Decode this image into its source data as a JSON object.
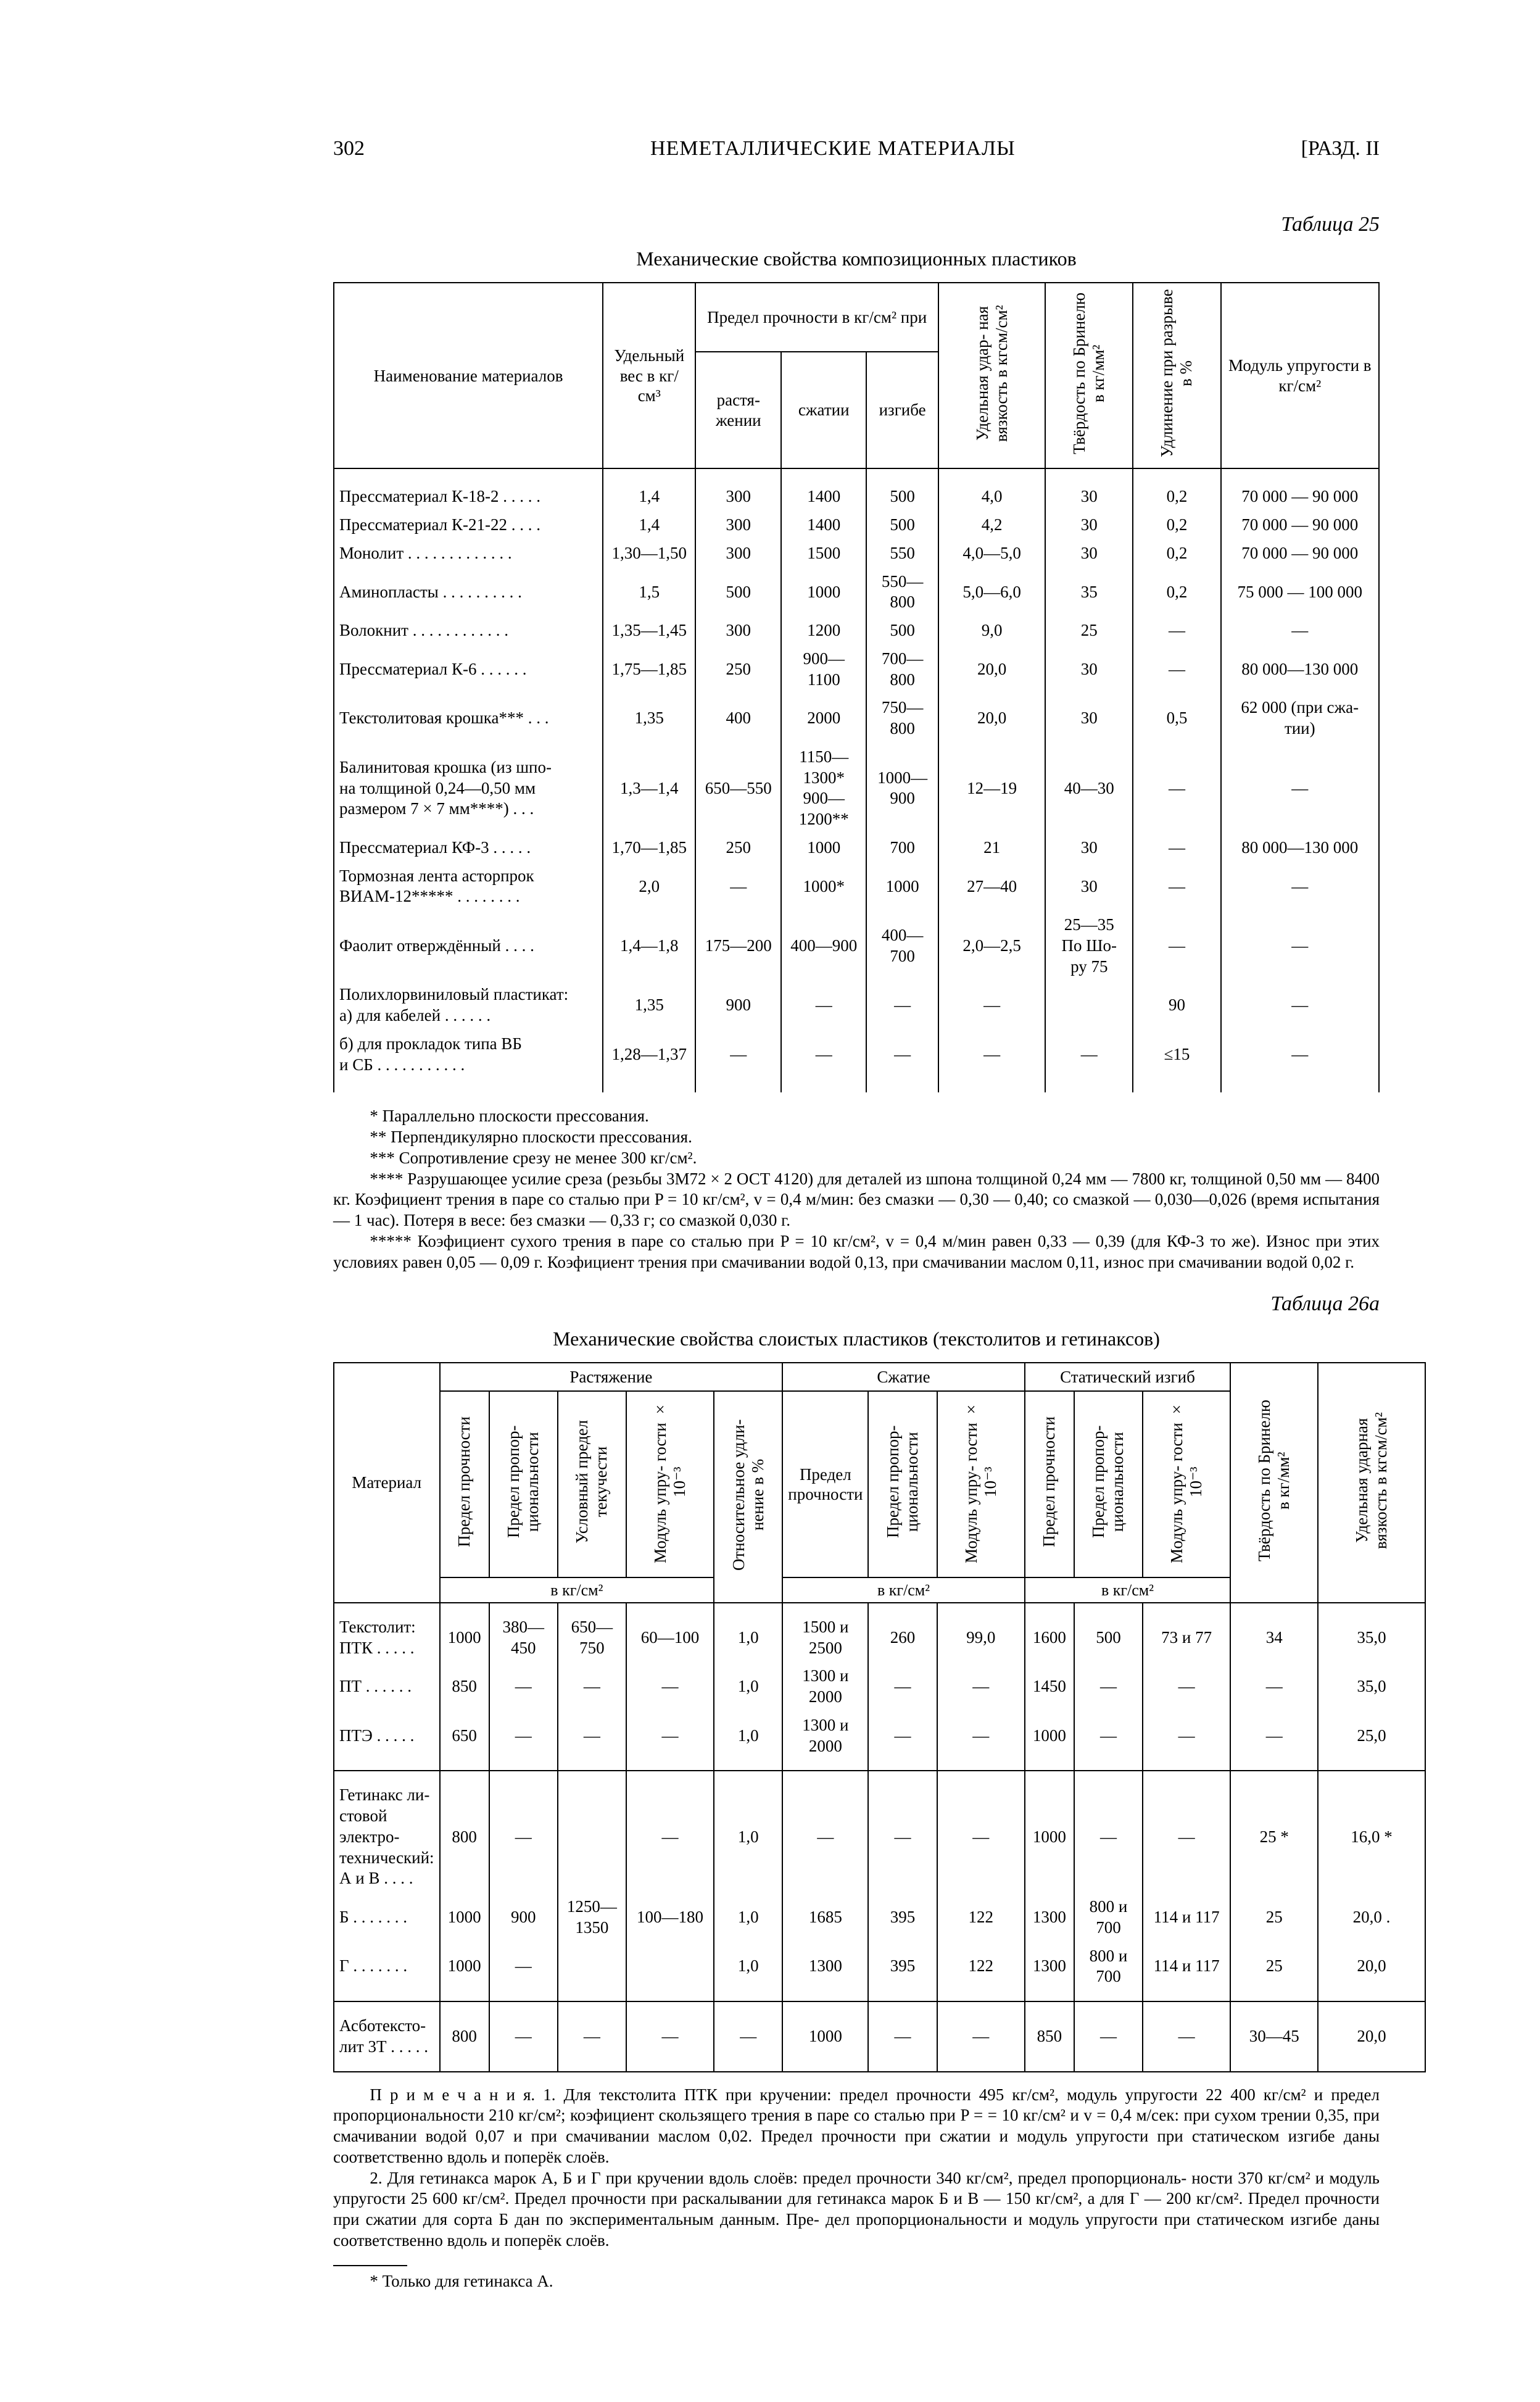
{
  "header": {
    "page_num": "302",
    "center": "НЕМЕТАЛЛИЧЕСКИЕ МАТЕРИАЛЫ",
    "right": "[РАЗД. II"
  },
  "colors": {
    "background": "#ffffff",
    "text": "#000000",
    "rule": "#000000"
  },
  "typography": {
    "base_fontsize_pt": 9,
    "title_fontsize_pt": 10,
    "head_fontsize_pt": 11
  },
  "table25": {
    "caption": "Таблица 25",
    "title": "Механические свойства композиционных пластиков",
    "head": {
      "name": "Наименование материалов",
      "density": "Удельный вес в кг/см³",
      "strength_group": "Предел прочности в кг/см² при",
      "tension": "растя-\nжении",
      "compression": "сжатии",
      "bending": "изгибе",
      "impact": "Удельная удар-\nная вязкость\nв кгсм/см²",
      "brinell": "Твёрдость по\nБринелю в\nкг/мм²",
      "elong": "Удлинение при\nразрыве в %",
      "modulus": "Модуль упругости в кг/см²"
    },
    "rows": [
      {
        "name": "Прессматериал К-18-2 . . . . .",
        "d": "1,4",
        "t": "300",
        "c": "1400",
        "b": "500",
        "i": "4,0",
        "br": "30",
        "el": "0,2",
        "m": "70 000 — 90 000"
      },
      {
        "name": "Прессматериал К-21-22 . . . .",
        "d": "1,4",
        "t": "300",
        "c": "1400",
        "b": "500",
        "i": "4,2",
        "br": "30",
        "el": "0,2",
        "m": "70 000 — 90 000"
      },
      {
        "name": "Монолит . . . . . . . . . . . . .",
        "d": "1,30—1,50",
        "t": "300",
        "c": "1500",
        "b": "550",
        "i": "4,0—5,0",
        "br": "30",
        "el": "0,2",
        "m": "70 000 — 90 000"
      },
      {
        "name": "Аминопласты . . . . . . . . . .",
        "d": "1,5",
        "t": "500",
        "c": "1000",
        "b": "550—800",
        "i": "5,0—6,0",
        "br": "35",
        "el": "0,2",
        "m": "75 000 — 100 000"
      },
      {
        "name": "Волокнит . . . . . . . . . . . .",
        "d": "1,35—1,45",
        "t": "300",
        "c": "1200",
        "b": "500",
        "i": "9,0",
        "br": "25",
        "el": "—",
        "m": "—"
      },
      {
        "name": "Прессматериал К-6 . . . . . .",
        "d": "1,75—1,85",
        "t": "250",
        "c": "900—1100",
        "b": "700—800",
        "i": "20,0",
        "br": "30",
        "el": "—",
        "m": "80 000—130 000"
      },
      {
        "name": "Текстолитовая крошка*** . . .",
        "d": "1,35",
        "t": "400",
        "c": "2000",
        "b": "750—800",
        "i": "20,0",
        "br": "30",
        "el": "0,5",
        "m": "62 000 (при сжа-\nтии)"
      },
      {
        "name": "Балинитовая крошка (из шпо-\nна толщиной 0,24—0,50 мм\nразмером 7 × 7 мм****) . . .",
        "d": "1,3—1,4",
        "t": "650—550",
        "c": "1150—1300*\n900—1200**",
        "b": "1000—900",
        "i": "12—19",
        "br": "40—30",
        "el": "—",
        "m": "—"
      },
      {
        "name": "Прессматериал КФ-3 . . . . .",
        "d": "1,70—1,85",
        "t": "250",
        "c": "1000",
        "b": "700",
        "i": "21",
        "br": "30",
        "el": "—",
        "m": "80 000—130 000"
      },
      {
        "name": "Тормозная лента асторпрок\nВИАМ-12***** . . . . . . . .",
        "d": "2,0",
        "t": "—",
        "c": "1000*",
        "b": "1000",
        "i": "27—40",
        "br": "30",
        "el": "—",
        "m": "—"
      },
      {
        "name": "Фаолит отверждённый . . . .",
        "d": "1,4—1,8",
        "t": "175—200",
        "c": "400—900",
        "b": "400—700",
        "i": "2,0—2,5",
        "br": "25—35\nПо Шо-\nру 75",
        "el": "—",
        "m": "—"
      },
      {
        "name": "Полихлорвиниловый пластикат:\nа) для кабелей . . . . . .",
        "d": "1,35",
        "t": "900",
        "c": "—",
        "b": "—",
        "i": "—",
        "br": "",
        "el": "90",
        "m": "—"
      },
      {
        "name": "б) для прокладок типа ВБ\nи СБ . . . . . . . . . . .",
        "d": "1,28—1,37",
        "t": "—",
        "c": "—",
        "b": "—",
        "i": "—",
        "br": "—",
        "el": "≤15",
        "m": "—"
      }
    ]
  },
  "footnotes25": {
    "f1": "* Параллельно плоскости прессования.",
    "f2": "** Перпендикулярно плоскости прессования.",
    "f3": "*** Сопротивление срезу не менее 300 кг/см².",
    "f4": "**** Разрушающее усилие среза (резьбы 3М72 × 2 ОСТ 4120) для деталей из шпона толщиной 0,24 мм — 7800 кг, толщиной 0,50 мм — 8400 кг. Коэфициент трения в паре со сталью при P = 10 кг/см², v = 0,4 м/мин: без смазки — 0,30 — 0,40; со смазкой — 0,030—0,026 (время испытания — 1 час). Потеря в весе: без смазки — 0,33 г; со смазкой 0,030 г.",
    "f5": "***** Коэфициент сухого трения в паре со сталью при P = 10 кг/см², v = 0,4 м/мин равен 0,33 — 0,39 (для КФ-3 то же). Износ при этих условиях равен 0,05 — 0,09 г. Коэфициент трения при смачивании водой 0,13, при смачивании маслом 0,11, износ при смачивании водой 0,02 г."
  },
  "table26a": {
    "caption": "Таблица 26а",
    "title": "Механические свойства слоистых пластиков (текстолитов и гетинаксов)",
    "head": {
      "material": "Материал",
      "tension_group": "Растяжение",
      "compression_group": "Сжатие",
      "bending_group": "Статический изгиб",
      "strength": "Предел прочности",
      "prop": "Предел пропор-\nциональности",
      "yield": "Условный предел\nтекучести",
      "modulus": "Модуль упру-\nгости × 10⁻³",
      "elong": "Относительное удли-\nнение в %",
      "c_strength": "Предел прочности",
      "c_prop": "Предел пропор-\nциональности",
      "c_mod": "Модуль упру-\nгости × 10⁻³",
      "b_strength": "Предел прочности",
      "b_prop": "Предел пропор-\nциональности",
      "b_mod": "Модуль упру-\nгости × 10⁻³",
      "brinell": "Твёрдость по Бринелю\nв кг/мм²",
      "impact": "Удельная ударная\nвязкость в кгсм/см²",
      "unit1": "в кг/см²",
      "unit2": "в кг/см²",
      "unit3": "в кг/см²"
    },
    "blocks": [
      {
        "rows": [
          {
            "name": "Текстолит:\nПТК . . . . .",
            "c1": "1000",
            "c2": "380—450",
            "c3": "650—750",
            "c4": "60—100",
            "c5": "1,0",
            "c6": "1500 и 2500",
            "c7": "260",
            "c8": "99,0",
            "c9": "1600",
            "c10": "500",
            "c11": "73 и 77",
            "c12": "34",
            "c13": "35,0"
          },
          {
            "name": "ПТ . . . . . .",
            "c1": "850",
            "c2": "—",
            "c3": "—",
            "c4": "—",
            "c5": "1,0",
            "c6": "1300 и 2000",
            "c7": "—",
            "c8": "—",
            "c9": "1450",
            "c10": "—",
            "c11": "—",
            "c12": "—",
            "c13": "35,0"
          },
          {
            "name": "ПТЭ . . . . .",
            "c1": "650",
            "c2": "—",
            "c3": "—",
            "c4": "—",
            "c5": "1,0",
            "c6": "1300 и 2000",
            "c7": "—",
            "c8": "—",
            "c9": "1000",
            "c10": "—",
            "c11": "—",
            "c12": "—",
            "c13": "25,0"
          }
        ]
      },
      {
        "rows": [
          {
            "name": "Гетинакс ли-\nстовой электро-\nтехнический:\nА и В . . . .",
            "c1": "800",
            "c2": "—",
            "c3": "",
            "c4": "—",
            "c5": "1,0",
            "c6": "—",
            "c7": "—",
            "c8": "—",
            "c9": "1000",
            "c10": "—",
            "c11": "—",
            "c12": "25 *",
            "c13": "16,0 *"
          },
          {
            "name": "Б . . . . . . .",
            "c1": "1000",
            "c2": "900",
            "c3": "1250—1350",
            "c4": "100—180",
            "c5": "1,0",
            "c6": "1685",
            "c7": "395",
            "c8": "122",
            "c9": "1300",
            "c10": "800 и 700",
            "c11": "114 и 117",
            "c12": "25",
            "c13": "20,0 ."
          },
          {
            "name": "Г . . . . . . .",
            "c1": "1000",
            "c2": "—",
            "c3": "",
            "c4": "",
            "c5": "1,0",
            "c6": "1300",
            "c7": "395",
            "c8": "122",
            "c9": "1300",
            "c10": "800 и 700",
            "c11": "114 и 117",
            "c12": "25",
            "c13": "20,0"
          }
        ]
      },
      {
        "rows": [
          {
            "name": "Асботексто-\nлит 3Т . . . . .",
            "c1": "800",
            "c2": "—",
            "c3": "—",
            "c4": "—",
            "c5": "—",
            "c6": "1000",
            "c7": "—",
            "c8": "—",
            "c9": "850",
            "c10": "—",
            "c11": "—",
            "c12": "30—45",
            "c13": "20,0"
          }
        ]
      }
    ]
  },
  "notes26a": {
    "p1": "П р и м е ч а н и я.  1. Для текстолита ПТК при кручении: предел прочности 495 кг/см², модуль упругости 22 400 кг/см² и предел пропорциональности 210 кг/см²; коэфициент скользящего трения в паре со сталью при P = = 10 кг/см² и v = 0,4 м/сек: при сухом трении 0,35, при смачивании водой 0,07 и при смачивании маслом 0,02. Предел прочности при сжатии и модуль упругости при статическом изгибе даны соответственно вдоль и поперёк слоёв.",
    "p2": "2. Для гетинакса марок А, Б и Г при кручении вдоль слоёв: предел прочности 340 кг/см², предел пропорциональ-\nности 370 кг/см² и модуль упругости 25 600 кг/см². Предел прочности при раскалывании для гетинакса марок Б и В — 150 кг/см², а для Г — 200 кг/см². Предел прочности при сжатии для сорта Б дан по экспериментальным данным. Пре-\nдел пропорциональности и модуль упругости при статическом изгибе даны соответственно вдоль и поперёк слоёв.",
    "star": "* Только для гетинакса А."
  }
}
